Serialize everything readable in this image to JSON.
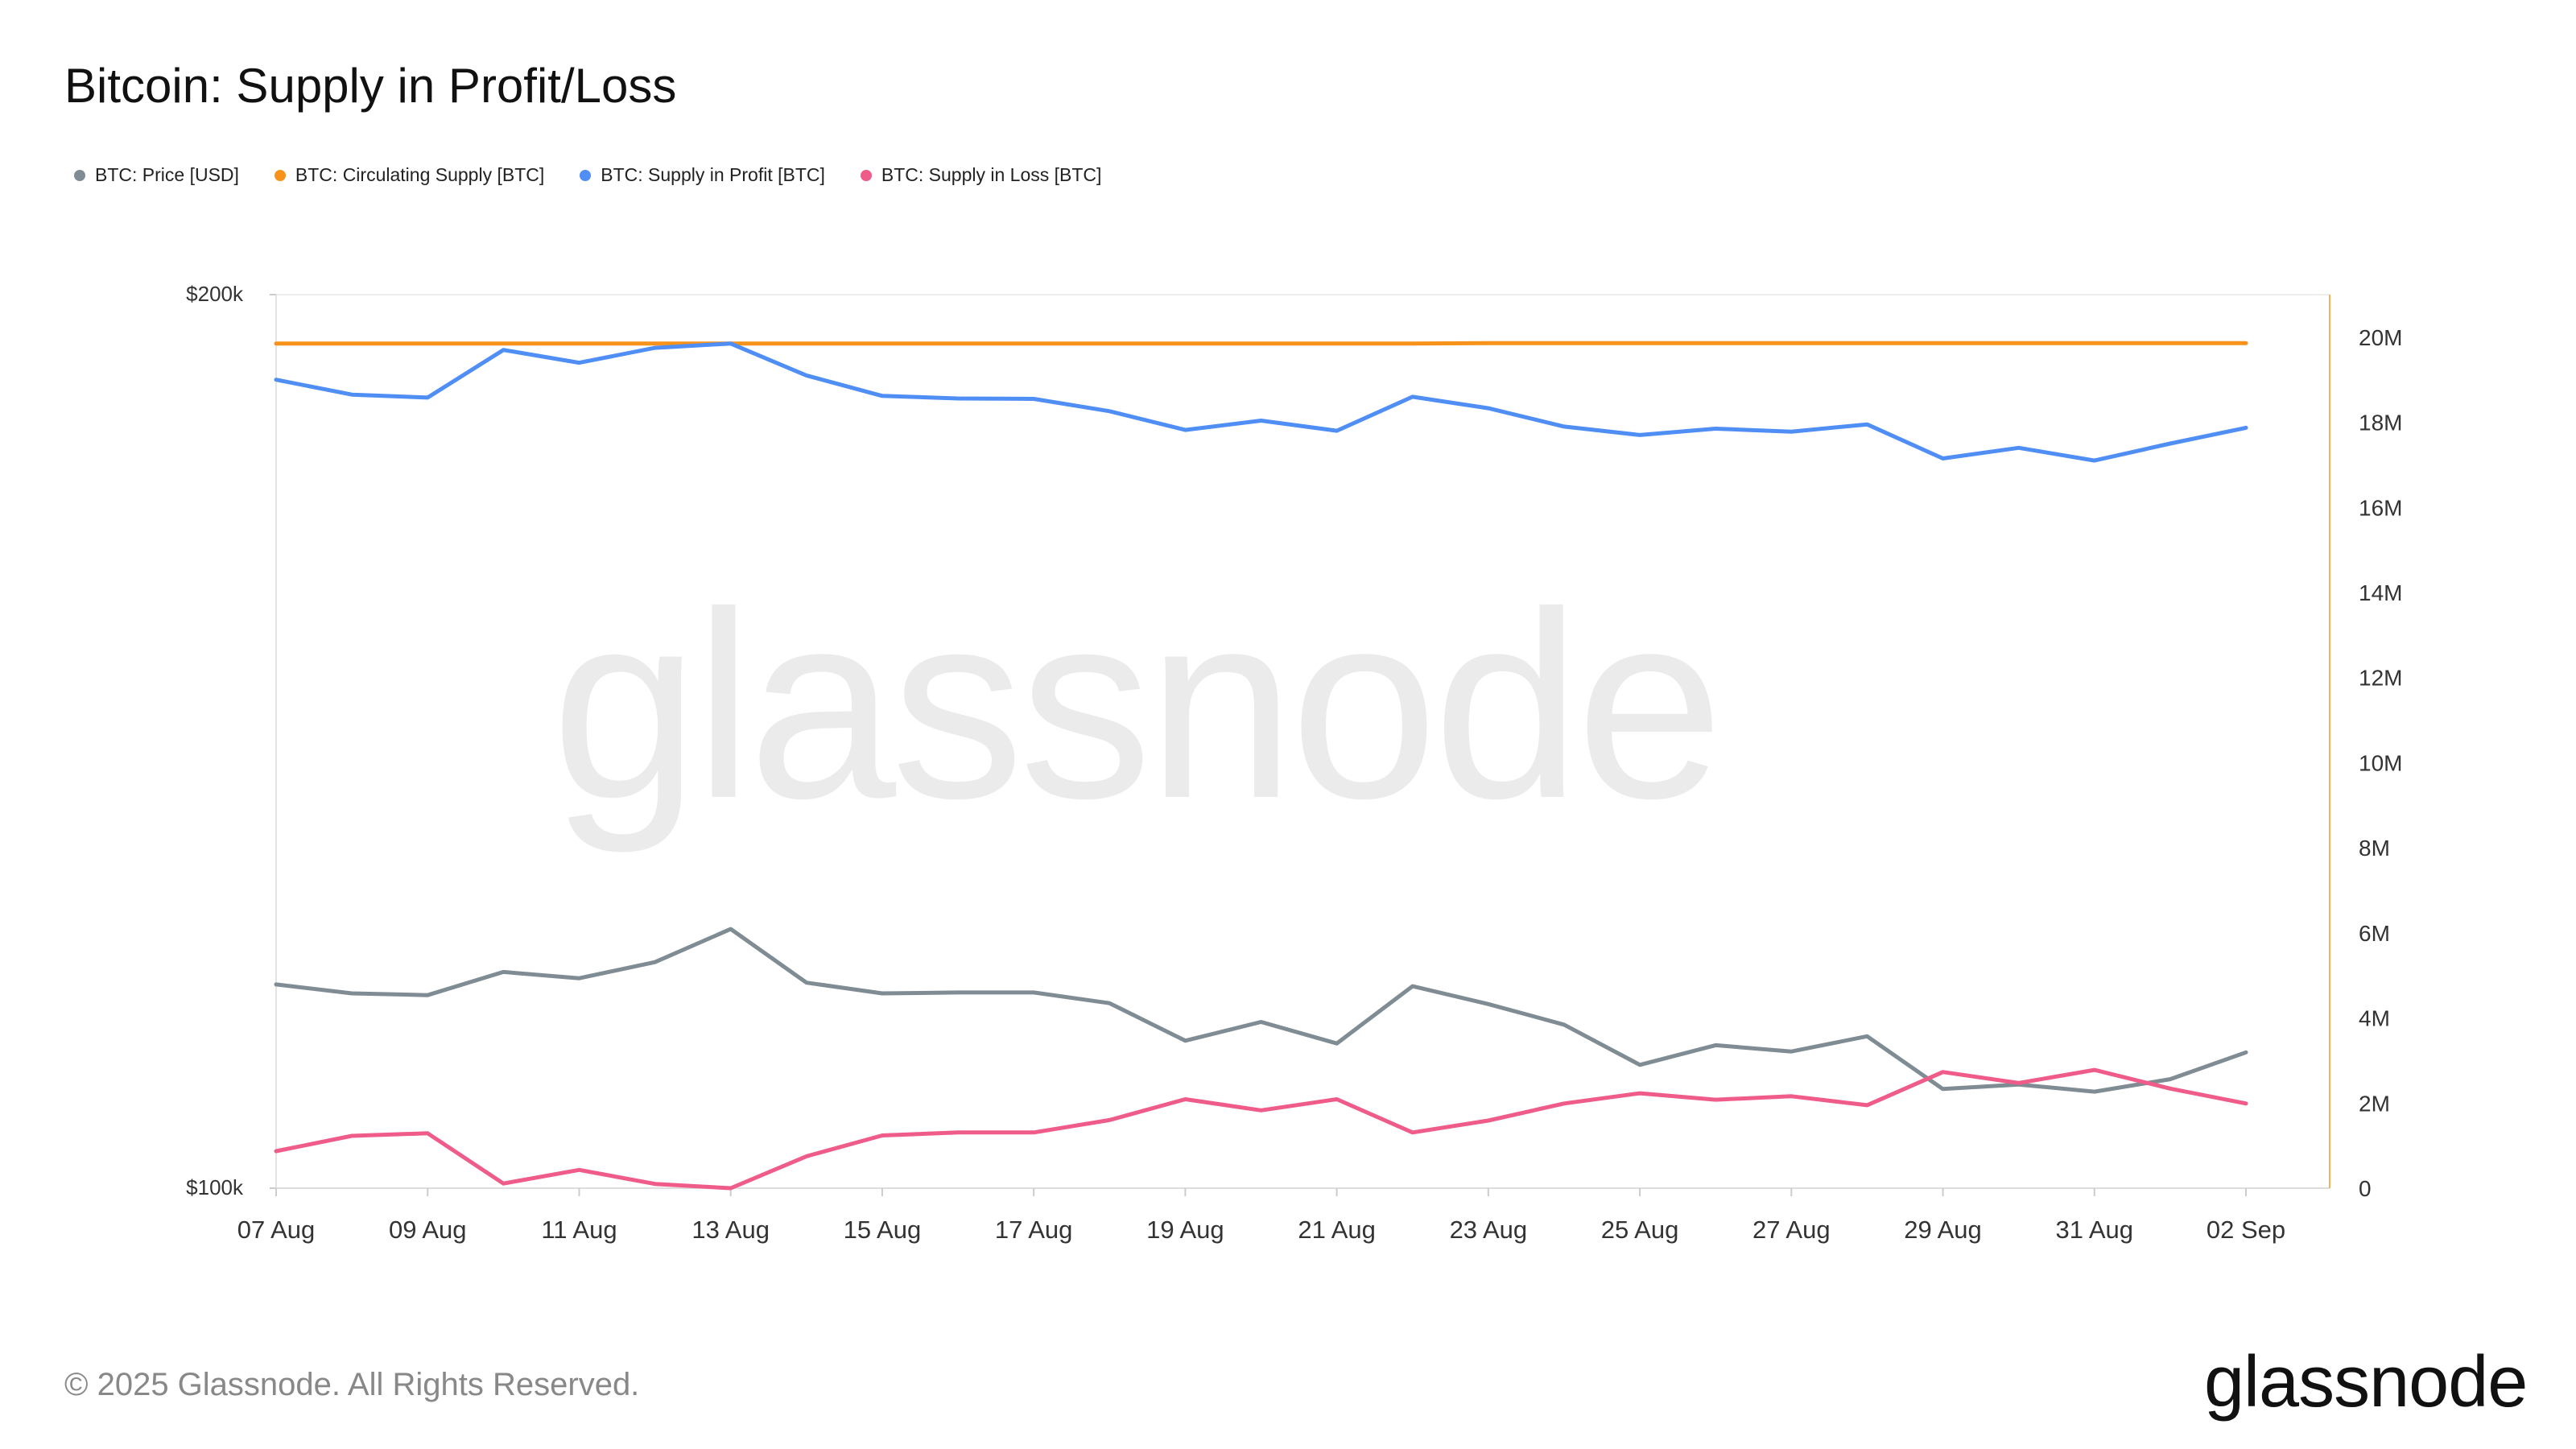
{
  "title": "Bitcoin: Supply in Profit/Loss",
  "watermark": "glassnode",
  "footer": {
    "copyright": "© 2025 Glassnode. All Rights Reserved.",
    "logo": "glassnode"
  },
  "colors": {
    "price": "#808c94",
    "circulating": "#f7931a",
    "profit": "#4f8ef5",
    "loss": "#ef5c8a"
  },
  "chart_data": {
    "type": "line",
    "legend_position": "top-left",
    "grid": false,
    "x": [
      "07 Aug",
      "08 Aug",
      "09 Aug",
      "10 Aug",
      "11 Aug",
      "12 Aug",
      "13 Aug",
      "14 Aug",
      "15 Aug",
      "16 Aug",
      "17 Aug",
      "18 Aug",
      "19 Aug",
      "20 Aug",
      "21 Aug",
      "22 Aug",
      "23 Aug",
      "24 Aug",
      "25 Aug",
      "26 Aug",
      "27 Aug",
      "28 Aug",
      "29 Aug",
      "30 Aug",
      "31 Aug",
      "01 Sep",
      "02 Sep"
    ],
    "x_tick_labels": [
      "07 Aug",
      "09 Aug",
      "11 Aug",
      "13 Aug",
      "15 Aug",
      "17 Aug",
      "19 Aug",
      "21 Aug",
      "23 Aug",
      "25 Aug",
      "27 Aug",
      "29 Aug",
      "31 Aug",
      "02 Sep"
    ],
    "y_left": {
      "ticks": [
        "$100k",
        "$200k"
      ],
      "range": [
        100000,
        200000
      ]
    },
    "y_right": {
      "ticks": [
        "0",
        "2M",
        "4M",
        "6M",
        "8M",
        "10M",
        "12M",
        "14M",
        "16M",
        "18M",
        "20M"
      ],
      "range": [
        0,
        21000000
      ]
    },
    "series": [
      {
        "name": "BTC: Price [USD]",
        "axis": "left",
        "color": "#808c94",
        "values": [
          122800,
          121800,
          121600,
          124200,
          123500,
          125300,
          129000,
          123000,
          121800,
          121900,
          121900,
          120700,
          116500,
          118600,
          116200,
          122600,
          120600,
          118300,
          113800,
          116000,
          115300,
          117000,
          111100,
          111600,
          110800,
          112200,
          115200
        ]
      },
      {
        "name": "BTC: Circulating Supply [BTC]",
        "axis": "right",
        "color": "#f7931a",
        "values": [
          19850000,
          19850000,
          19850000,
          19850000,
          19850000,
          19850000,
          19850000,
          19850000,
          19850000,
          19850000,
          19850000,
          19850000,
          19850000,
          19850000,
          19850000,
          19850000,
          19860000,
          19860000,
          19860000,
          19860000,
          19860000,
          19860000,
          19860000,
          19860000,
          19860000,
          19860000,
          19860000
        ]
      },
      {
        "name": "BTC: Supply in Profit [BTC]",
        "axis": "right",
        "color": "#4f8ef5",
        "values": [
          19000000,
          18650000,
          18580000,
          19700000,
          19400000,
          19750000,
          19850000,
          19100000,
          18620000,
          18560000,
          18550000,
          18260000,
          17820000,
          18040000,
          17800000,
          18600000,
          18330000,
          17900000,
          17700000,
          17850000,
          17780000,
          17950000,
          17150000,
          17400000,
          17100000,
          17500000,
          17870000
        ]
      },
      {
        "name": "BTC: Supply in Loss [BTC]",
        "axis": "right",
        "color": "#ef5c8a",
        "values": [
          870000,
          1230000,
          1290000,
          110000,
          430000,
          100000,
          0,
          750000,
          1240000,
          1310000,
          1310000,
          1600000,
          2090000,
          1830000,
          2090000,
          1310000,
          1590000,
          1990000,
          2230000,
          2080000,
          2160000,
          1950000,
          2730000,
          2470000,
          2780000,
          2340000,
          1990000
        ]
      }
    ]
  }
}
